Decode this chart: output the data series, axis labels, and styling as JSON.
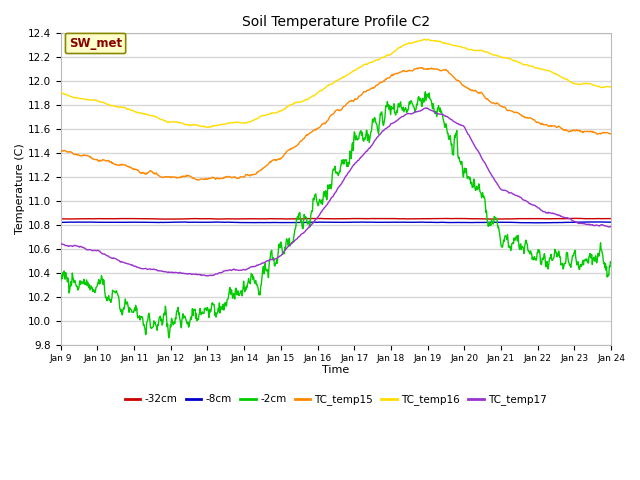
{
  "title": "Soil Temperature Profile C2",
  "xlabel": "Time",
  "ylabel": "Temperature (C)",
  "ylim": [
    9.8,
    12.4
  ],
  "x_tick_labels": [
    "Jan 9",
    "Jan 10",
    "Jan 11",
    "Jan 12",
    "Jan 13",
    "Jan 14",
    "Jan 15",
    "Jan 16",
    "Jan 17",
    "Jan 18",
    "Jan 19",
    "Jan 20",
    "Jan 21",
    "Jan 22",
    "Jan 23",
    "Jan 24"
  ],
  "plot_bg_color": "#ffffff",
  "fig_bg_color": "#ffffff",
  "legend_items": [
    "-32cm",
    "-8cm",
    "-2cm",
    "TC_temp15",
    "TC_temp16",
    "TC_temp17"
  ],
  "legend_colors": [
    "#cc0000",
    "#0000cc",
    "#00cc00",
    "#ff8800",
    "#ffdd00",
    "#9933cc"
  ],
  "annotation_text": "SW_met",
  "annotation_color": "#880000",
  "annotation_bg": "#ffffcc",
  "annotation_border": "#888800",
  "grid_color": "#d8d8d8",
  "line_width": 1.0,
  "n_points": 1000,
  "seed": 42
}
